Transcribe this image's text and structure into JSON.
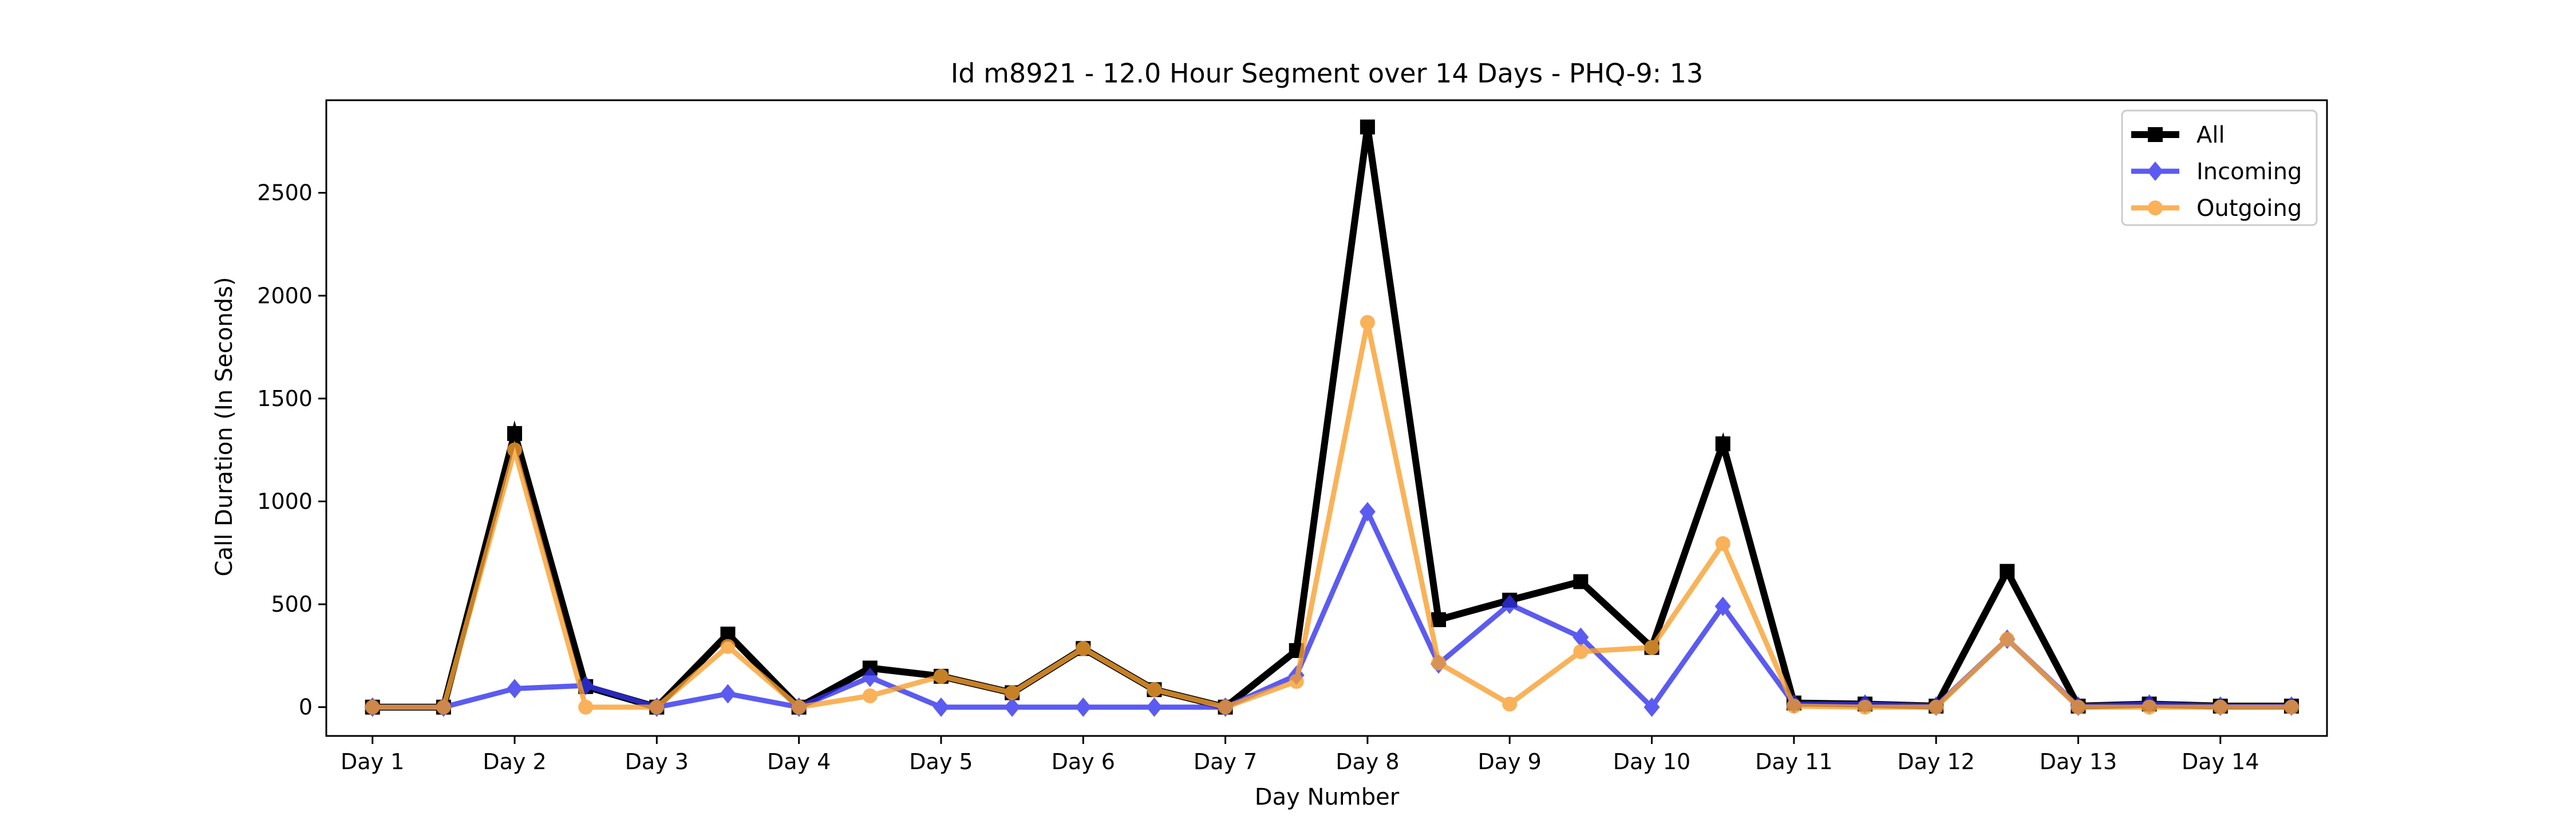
{
  "chart_data": {
    "type": "line",
    "title": "Id m8921 - 12.0 Hour Segment over 14 Days - PHQ-9: 13",
    "xlabel": "Day Number",
    "ylabel": "Call Duration (In Seconds)",
    "ylim": [
      -140,
      2950
    ],
    "yticks": [
      0,
      500,
      1000,
      1500,
      2000,
      2500
    ],
    "xlim": [
      -0.65,
      27.5
    ],
    "xticks": [
      {
        "label": "Day 1",
        "x": 0
      },
      {
        "label": "Day 2",
        "x": 2
      },
      {
        "label": "Day 3",
        "x": 4
      },
      {
        "label": "Day 4",
        "x": 6
      },
      {
        "label": "Day 5",
        "x": 8
      },
      {
        "label": "Day 6",
        "x": 10
      },
      {
        "label": "Day 7",
        "x": 12
      },
      {
        "label": "Day 8",
        "x": 14
      },
      {
        "label": "Day 9",
        "x": 16
      },
      {
        "label": "Day 10",
        "x": 18
      },
      {
        "label": "Day 11",
        "x": 20
      },
      {
        "label": "Day 12",
        "x": 22
      },
      {
        "label": "Day 13",
        "x": 24
      },
      {
        "label": "Day 14",
        "x": 26
      }
    ],
    "x": [
      0,
      1,
      2,
      3,
      4,
      5,
      6,
      7,
      8,
      9,
      10,
      11,
      12,
      13,
      14,
      15,
      16,
      17,
      18,
      19,
      20,
      21,
      22,
      23,
      24,
      25,
      26,
      27
    ],
    "grid": false,
    "legend_position": "top-right",
    "series": [
      {
        "name": "All",
        "color": "#000000",
        "marker": "square",
        "values": [
          0,
          0,
          1330,
          100,
          0,
          355,
          0,
          190,
          150,
          70,
          285,
          85,
          0,
          275,
          2820,
          425,
          520,
          610,
          290,
          1280,
          20,
          15,
          5,
          660,
          5,
          15,
          5,
          5
        ]
      },
      {
        "name": "Incoming",
        "color": "#3333ee",
        "marker": "diamond",
        "values": [
          0,
          0,
          90,
          105,
          0,
          65,
          0,
          145,
          0,
          0,
          0,
          0,
          0,
          155,
          950,
          210,
          500,
          340,
          0,
          490,
          15,
          15,
          5,
          330,
          5,
          15,
          5,
          5
        ]
      },
      {
        "name": "Outgoing",
        "color": "#f8a030",
        "marker": "circle",
        "values": [
          0,
          0,
          1250,
          0,
          0,
          295,
          0,
          55,
          150,
          70,
          285,
          85,
          0,
          125,
          1870,
          215,
          15,
          270,
          290,
          795,
          5,
          0,
          0,
          330,
          0,
          0,
          0,
          0
        ]
      }
    ]
  }
}
